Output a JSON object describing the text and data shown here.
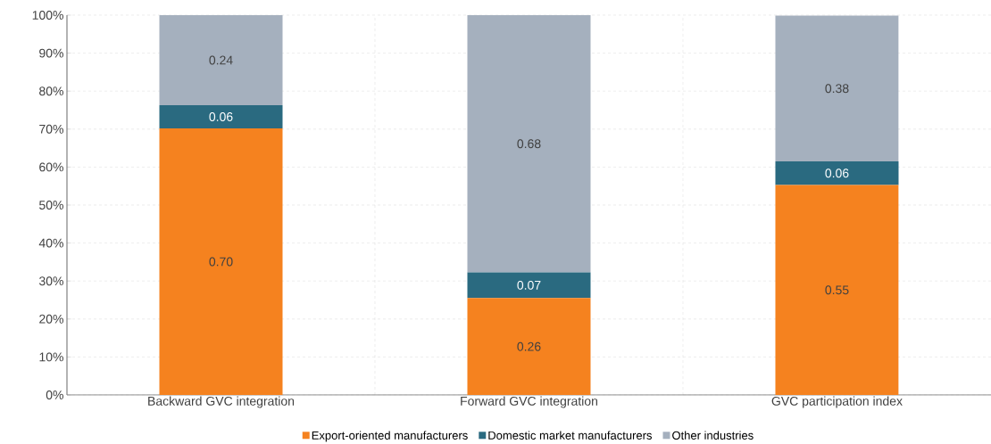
{
  "chart_data": {
    "type": "bar",
    "stacked": true,
    "categories": [
      "Backward GVC integration",
      "Forward GVC integration",
      "GVC participation index"
    ],
    "series": [
      {
        "name": "Export-oriented manufacturers",
        "color": "#f5821f",
        "values": [
          0.702,
          0.255,
          0.553
        ],
        "value_labels": [
          "0.70",
          "0.26",
          "0.55"
        ]
      },
      {
        "name": "Domestic market manufacturers",
        "color": "#2a6a80",
        "values": [
          0.061,
          0.068,
          0.062
        ],
        "value_labels": [
          "0.06",
          "0.07",
          "0.06"
        ]
      },
      {
        "name": "Other industries",
        "color": "#a5b0be",
        "values": [
          0.237,
          0.677,
          0.384
        ],
        "value_labels": [
          "0.24",
          "0.68",
          "0.38"
        ]
      }
    ],
    "ylim": [
      0,
      1
    ],
    "yticks": [
      {
        "value": 0,
        "label": "0%"
      },
      {
        "value": 0.1,
        "label": "10%"
      },
      {
        "value": 0.2,
        "label": "20%"
      },
      {
        "value": 0.3,
        "label": "30%"
      },
      {
        "value": 0.4,
        "label": "40%"
      },
      {
        "value": 0.5,
        "label": "50%"
      },
      {
        "value": 0.6,
        "label": "60%"
      },
      {
        "value": 0.7,
        "label": "70%"
      },
      {
        "value": 0.8,
        "label": "80%"
      },
      {
        "value": 0.9,
        "label": "90%"
      },
      {
        "value": 1,
        "label": "100%"
      }
    ],
    "grid": true,
    "legend": "bottom"
  }
}
